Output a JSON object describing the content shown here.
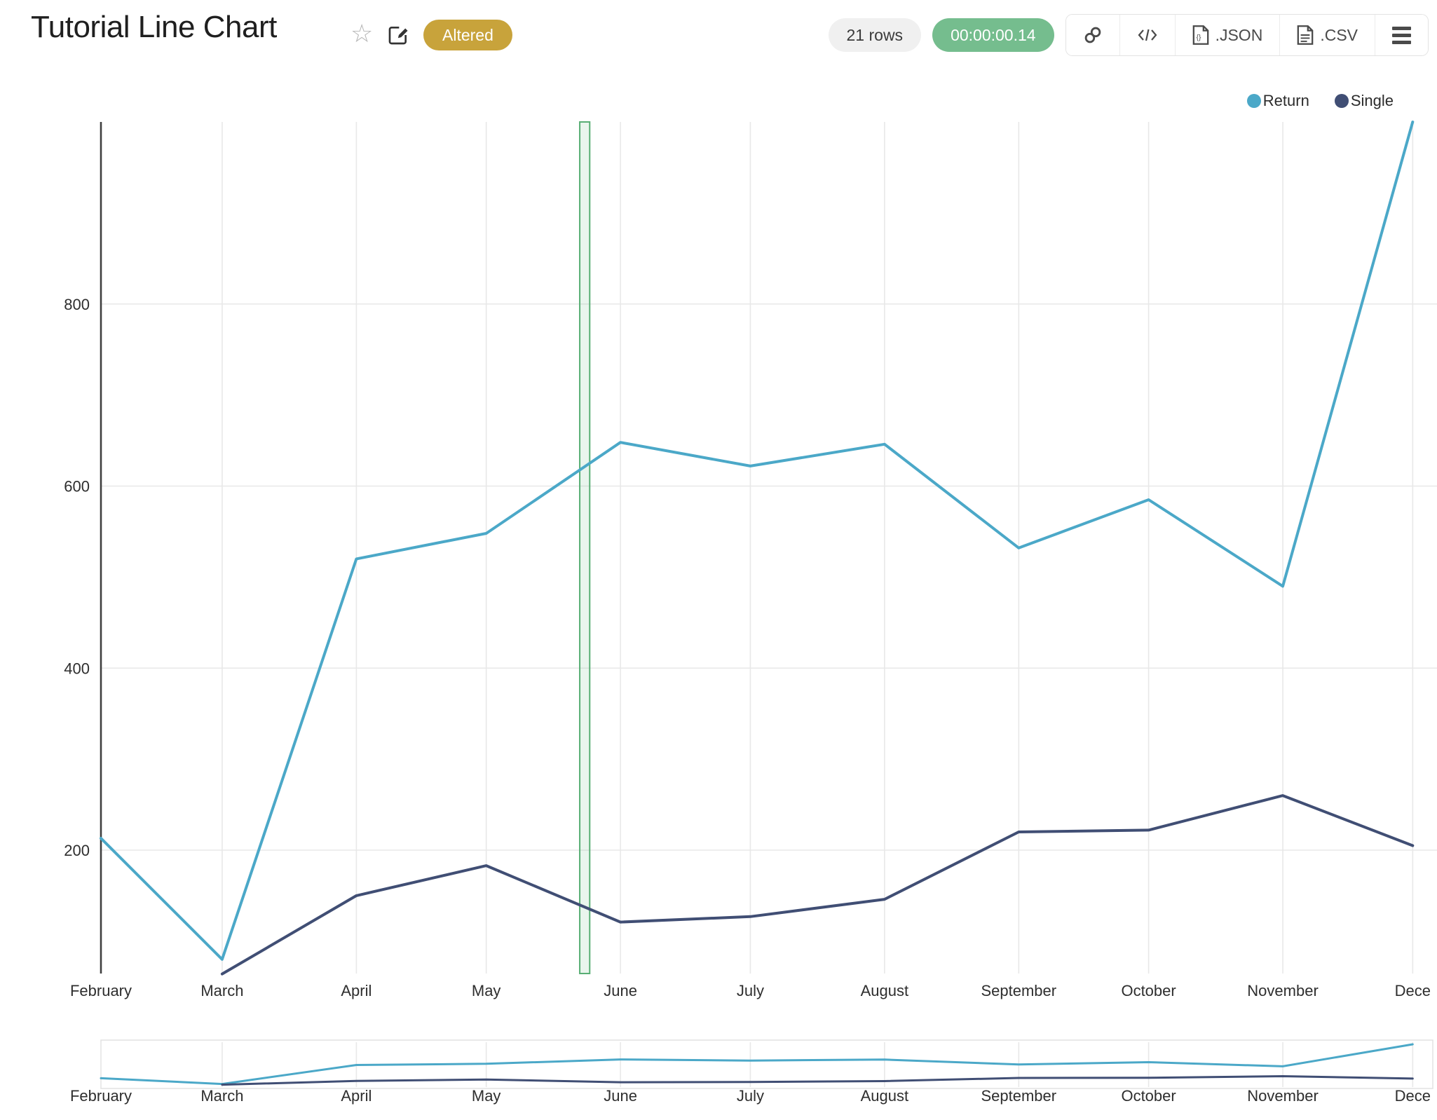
{
  "header": {
    "title": "Tutorial Line Chart",
    "status_badge": "Altered",
    "rows_count": "21 rows",
    "execution_time": "00:00:00.14",
    "buttons": {
      "json": ".JSON",
      "csv": ".CSV"
    }
  },
  "colors": {
    "return_line": "#4BA8C8",
    "single_line": "#404E74",
    "grid": "#e8e8e8",
    "axis_line": "#3f3f3f",
    "tick_text": "#2e2e2e",
    "badge_gold": "#c8a33b",
    "timer_green": "#75bd8e"
  },
  "chart_data": {
    "type": "line",
    "title": "Tutorial Line Chart",
    "categories": [
      "February",
      "March",
      "April",
      "May",
      "June",
      "July",
      "August",
      "September",
      "October",
      "November",
      "December"
    ],
    "x_tick_labels": [
      "February",
      "March",
      "April",
      "May",
      "June",
      "July",
      "August",
      "September",
      "October",
      "November",
      "Dece"
    ],
    "x_day_offsets": [
      0,
      28,
      59,
      89,
      120,
      150,
      181,
      212,
      242,
      273,
      303
    ],
    "y_ticks": [
      200,
      400,
      600,
      800
    ],
    "ylim": [
      64,
      1000
    ],
    "grid": true,
    "legend_position": "top-right",
    "range_slider": true,
    "series": [
      {
        "name": "Return",
        "color": "#4BA8C8",
        "values": [
          213,
          80,
          520,
          548,
          648,
          622,
          646,
          532,
          585,
          490,
          1000
        ]
      },
      {
        "name": "Single",
        "color": "#404E74",
        "values": [
          null,
          64,
          150,
          183,
          121,
          127,
          146,
          220,
          222,
          260,
          205
        ]
      }
    ],
    "selection_band": {
      "day_start": 110.6,
      "day_end": 112.9,
      "fill": "rgba(88,174,116,0.13)",
      "border": "#58ae74"
    }
  }
}
